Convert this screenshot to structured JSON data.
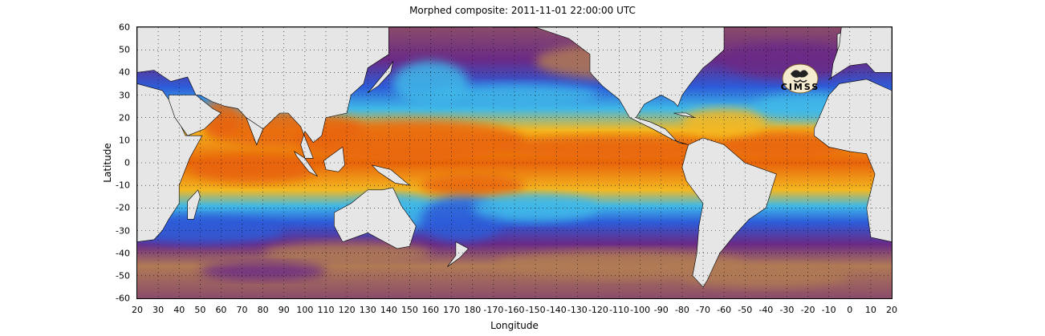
{
  "title": "Morphed composite: 2011-11-01 22:00:00 UTC",
  "xlabel": "Longitude",
  "ylabel": "Latitude",
  "logo_text": "CIMSS",
  "x_ticks": [
    "20",
    "30",
    "40",
    "50",
    "60",
    "70",
    "80",
    "90",
    "100",
    "110",
    "120",
    "130",
    "140",
    "150",
    "160",
    "170",
    "180",
    "-170",
    "-160",
    "-150",
    "-140",
    "-130",
    "-120",
    "-110",
    "-100",
    "-90",
    "-80",
    "-70",
    "-60",
    "-50",
    "-40",
    "-30",
    "-20",
    "-10",
    "0",
    "10",
    "20"
  ],
  "y_ticks": [
    "60",
    "50",
    "40",
    "30",
    "20",
    "10",
    "0",
    "-10",
    "-20",
    "-30",
    "-40",
    "-50",
    "-60"
  ],
  "map": {
    "projection": "equirectangular",
    "lon_range": [
      20,
      380
    ],
    "lat_range": [
      -60,
      60
    ],
    "grid": "dotted",
    "land_color": "#e6e6e6",
    "colors": {
      "very_low": "#6a2a86",
      "low": "#b07a55",
      "mid_low": "#2d5bd8",
      "mid": "#3fb8e8",
      "mid_high": "#7fe07a",
      "high": "#f4b820",
      "very_high": "#e8640a"
    }
  }
}
